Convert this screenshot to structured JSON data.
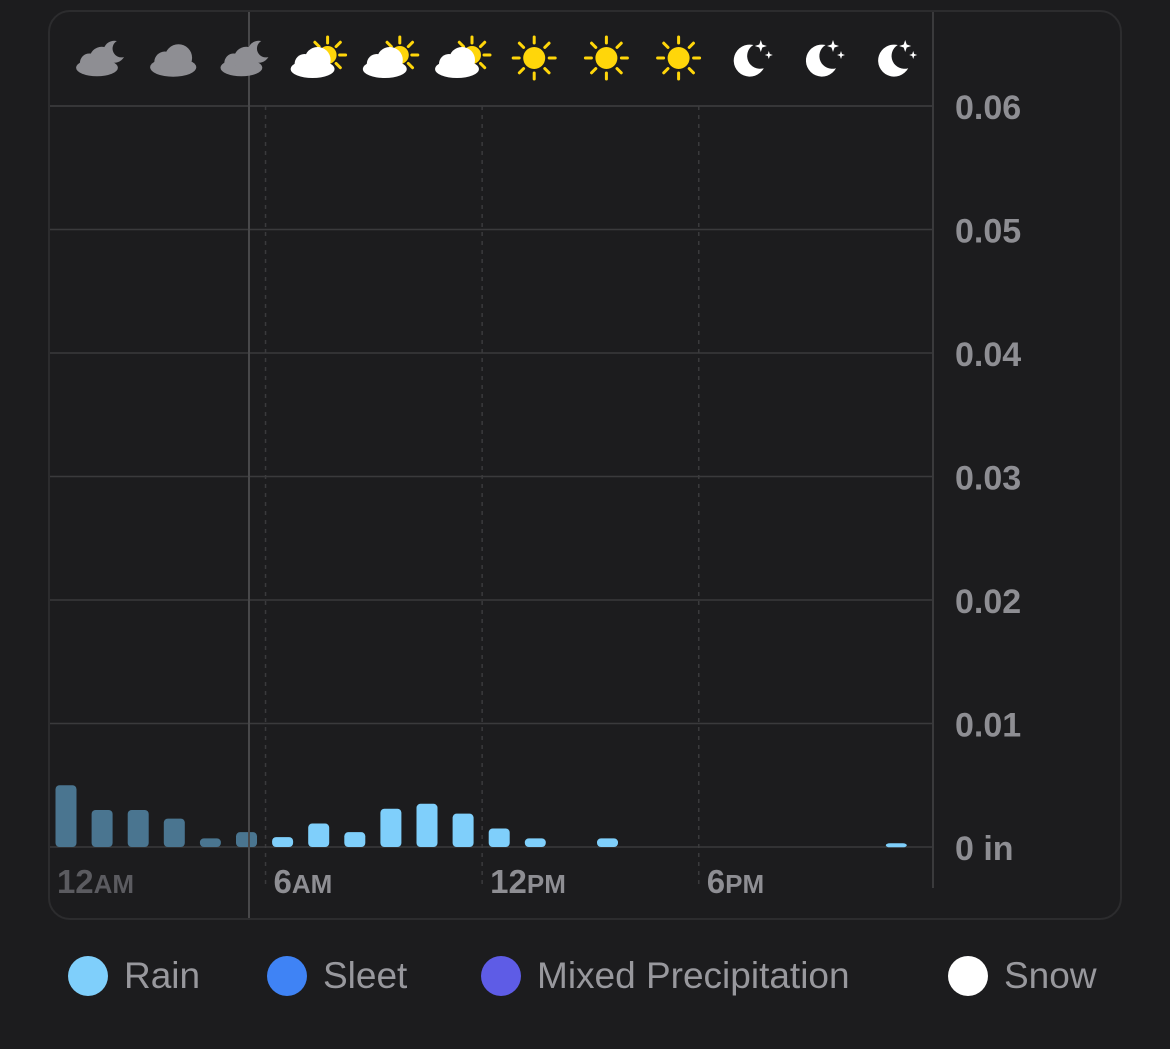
{
  "chart_data": {
    "type": "bar",
    "y_axis": {
      "ticks": [
        "0.06",
        "0.05",
        "0.04",
        "0.03",
        "0.02",
        "0.01",
        "0 in"
      ],
      "ylim": [
        0,
        0.06
      ],
      "position": "right",
      "grid": true
    },
    "x_axis": {
      "ticks": [
        {
          "hour": 0,
          "main": "12",
          "suffix": "AM",
          "past": true
        },
        {
          "hour": 6,
          "main": "6",
          "suffix": "AM",
          "past": false
        },
        {
          "hour": 12,
          "main": "12",
          "suffix": "PM",
          "past": false
        },
        {
          "hour": 18,
          "main": "6",
          "suffix": "PM",
          "past": false
        }
      ]
    },
    "current_hour": 5,
    "hours": [
      0,
      1,
      2,
      3,
      4,
      5,
      6,
      7,
      8,
      9,
      10,
      11,
      12,
      13,
      14,
      15,
      16,
      17,
      18,
      19,
      20,
      21,
      22,
      23
    ],
    "series": [
      {
        "category": "Rain",
        "values": [
          0.005,
          0.003,
          0.003,
          0.0023,
          0.0007,
          0.0012,
          0.0008,
          0.0019,
          0.0012,
          0.0031,
          0.0035,
          0.0027,
          0.0015,
          0.0007,
          0,
          0.0007,
          0,
          0,
          0,
          0,
          0,
          0,
          0,
          0.0003
        ]
      }
    ],
    "condition_icons": [
      "cloud-moon-icon",
      "cloud-icon",
      "cloud-moon-icon",
      "cloud-sun-icon",
      "cloud-sun-icon",
      "cloud-sun-icon",
      "sun-icon",
      "sun-icon",
      "sun-icon",
      "moon-stars-icon",
      "moon-stars-icon",
      "moon-stars-icon"
    ],
    "colors": {
      "rain": "#7fcffb",
      "rain_past": "#4a7590",
      "sleet": "#3f83f5",
      "mixed": "#5e5ce6",
      "snow": "#ffffff",
      "grid": "#3a3a3c",
      "label": "#8e8e93",
      "past_label": "#5b5b60"
    }
  },
  "legend": [
    {
      "label": "Rain",
      "color": "#7fcffb"
    },
    {
      "label": "Sleet",
      "color": "#3f83f5"
    },
    {
      "label": "Mixed Precipitation",
      "color": "#5e5ce6"
    },
    {
      "label": "Snow",
      "color": "#ffffff"
    }
  ]
}
